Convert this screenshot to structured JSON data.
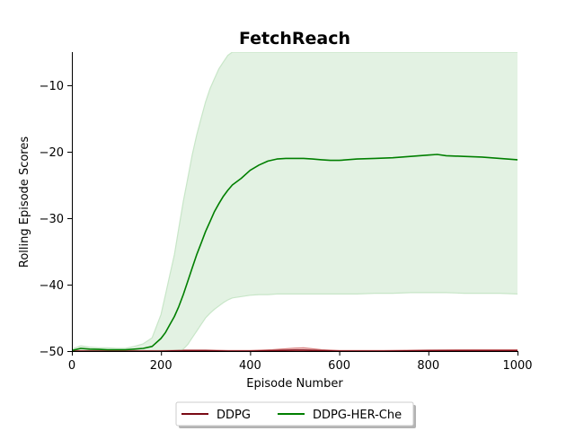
{
  "chart_data": {
    "type": "line",
    "title": "FetchReach",
    "xlabel": "Episode Number",
    "ylabel": "Rolling Episode Scores",
    "xlim": [
      0,
      1000
    ],
    "ylim": [
      -50,
      -5
    ],
    "xticks": [
      0,
      200,
      400,
      600,
      800,
      1000
    ],
    "yticks": [
      -50,
      -40,
      -30,
      -20,
      -10
    ],
    "grid": false,
    "legend_placement": "bottom-center",
    "series": [
      {
        "name": "DDPG",
        "color": "#7a0a14",
        "band_color": "#d98080",
        "x": [
          0,
          100,
          200,
          250,
          300,
          350,
          400,
          450,
          500,
          520,
          560,
          600,
          700,
          800,
          900,
          1000
        ],
        "mean": [
          -50,
          -50,
          -50,
          -49.95,
          -49.95,
          -50,
          -50,
          -49.95,
          -49.85,
          -49.85,
          -49.95,
          -50,
          -50,
          -49.95,
          -49.95,
          -49.95
        ],
        "upper": [
          -49.9,
          -49.9,
          -49.9,
          -49.85,
          -49.85,
          -49.9,
          -49.9,
          -49.8,
          -49.55,
          -49.5,
          -49.8,
          -49.9,
          -49.9,
          -49.85,
          -49.8,
          -49.8
        ],
        "lower": [
          -50,
          -50,
          -50,
          -50,
          -50,
          -50,
          -50,
          -50,
          -50,
          -50,
          -50,
          -50,
          -50,
          -50,
          -50,
          -50
        ]
      },
      {
        "name": "DDPG-HER-Che",
        "color": "#007f00",
        "band_color": "#c8e6c8",
        "x": [
          0,
          20,
          40,
          60,
          80,
          100,
          120,
          140,
          160,
          180,
          200,
          210,
          220,
          230,
          240,
          250,
          260,
          270,
          280,
          290,
          300,
          310,
          320,
          330,
          340,
          350,
          360,
          380,
          400,
          420,
          440,
          460,
          480,
          500,
          520,
          540,
          560,
          580,
          600,
          640,
          680,
          720,
          760,
          800,
          820,
          840,
          880,
          920,
          960,
          1000
        ],
        "mean": [
          -49.9,
          -49.6,
          -49.7,
          -49.75,
          -49.8,
          -49.8,
          -49.8,
          -49.7,
          -49.6,
          -49.3,
          -48.1,
          -47.2,
          -46,
          -44.8,
          -43.3,
          -41.5,
          -39.5,
          -37.5,
          -35.5,
          -33.8,
          -32,
          -30.5,
          -29,
          -27.8,
          -26.7,
          -25.8,
          -25,
          -24,
          -22.8,
          -22,
          -21.4,
          -21.1,
          -21,
          -21,
          -21,
          -21.1,
          -21.2,
          -21.3,
          -21.3,
          -21.1,
          -21,
          -20.9,
          -20.7,
          -20.5,
          -20.4,
          -20.6,
          -20.7,
          -20.8,
          -21,
          -21.2
        ],
        "upper": [
          -49.7,
          -49.2,
          -49.4,
          -49.5,
          -49.5,
          -49.6,
          -49.6,
          -49.3,
          -48.9,
          -48,
          -44.5,
          -41.5,
          -38.5,
          -35.5,
          -31.5,
          -27.5,
          -24,
          -20.5,
          -17.5,
          -15,
          -12.5,
          -10.5,
          -9,
          -7.5,
          -6.5,
          -5.5,
          -5,
          -5,
          -5,
          -5,
          -5,
          -5,
          -5,
          -5,
          -5,
          -5,
          -5,
          -5,
          -5,
          -5,
          -5,
          -5,
          -5,
          -5,
          -5,
          -5,
          -5,
          -5,
          -5,
          -5
        ],
        "lower": [
          -50,
          -50,
          -50,
          -50,
          -50,
          -50,
          -50,
          -50,
          -50,
          -50,
          -50,
          -50,
          -50,
          -50,
          -50,
          -49.7,
          -49,
          -48,
          -47,
          -46,
          -45,
          -44.3,
          -43.7,
          -43.2,
          -42.7,
          -42.3,
          -42,
          -41.8,
          -41.6,
          -41.5,
          -41.5,
          -41.4,
          -41.4,
          -41.4,
          -41.4,
          -41.4,
          -41.4,
          -41.4,
          -41.4,
          -41.4,
          -41.3,
          -41.3,
          -41.2,
          -41.2,
          -41.2,
          -41.2,
          -41.3,
          -41.3,
          -41.3,
          -41.4
        ]
      }
    ]
  }
}
